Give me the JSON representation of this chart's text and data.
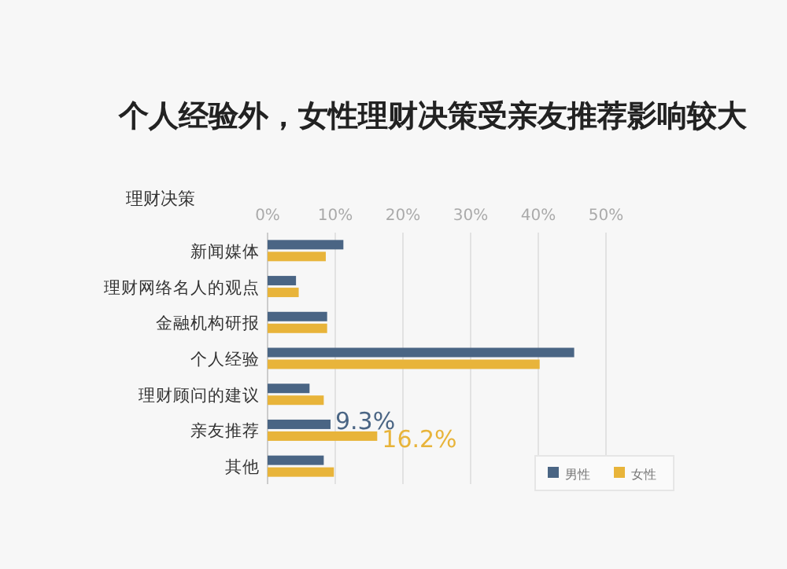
{
  "chart_data": {
    "type": "bar",
    "orientation": "horizontal",
    "title": "个人经验外，女性理财决策受亲友推荐影响较大",
    "ylabel": "理财决策",
    "categories": [
      "新闻媒体",
      "理财网络名人的观点",
      "金融机构研报",
      "个人经验",
      "理财顾问的建议",
      "亲友推荐",
      "其他"
    ],
    "series": [
      {
        "name": "男性",
        "color": "#4a6584",
        "values": [
          11.2,
          4.2,
          8.8,
          45.3,
          6.2,
          9.3,
          8.3
        ],
        "value_labels": [
          null,
          null,
          null,
          null,
          null,
          "9.3%",
          null
        ]
      },
      {
        "name": "女性",
        "color": "#e8b43a",
        "values": [
          8.6,
          4.6,
          8.8,
          40.2,
          8.3,
          16.2,
          9.8
        ],
        "value_labels": [
          null,
          null,
          null,
          null,
          null,
          "16.2%",
          null
        ]
      }
    ],
    "xlim": [
      0,
      50
    ],
    "xticks": [
      {
        "value": 0,
        "label": "0%"
      },
      {
        "value": 10,
        "label": "10%"
      },
      {
        "value": 20,
        "label": "20%"
      },
      {
        "value": 30,
        "label": "30%"
      },
      {
        "value": 40,
        "label": "40%"
      },
      {
        "value": 50,
        "label": "50%"
      }
    ],
    "grid": "x",
    "legend": "bottom right"
  }
}
